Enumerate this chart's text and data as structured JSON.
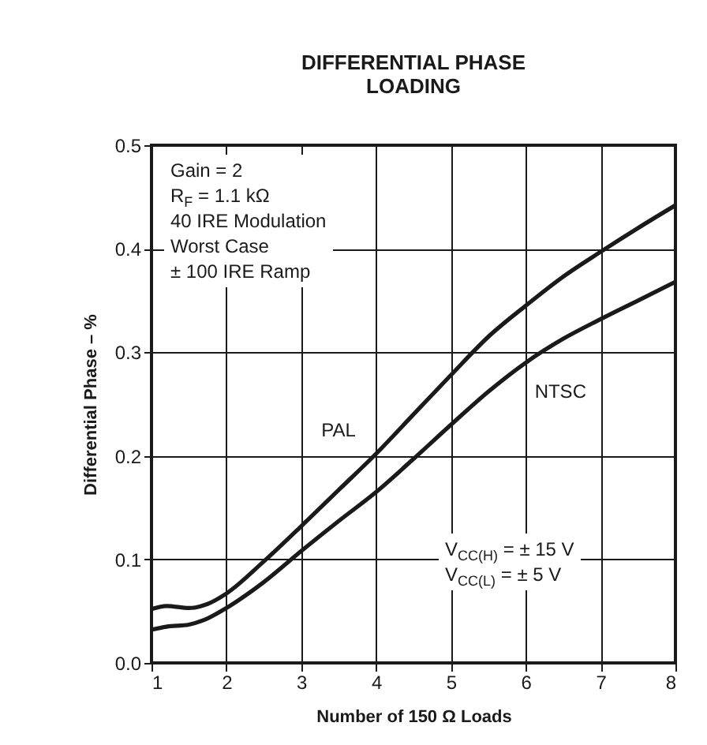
{
  "chart_data": {
    "type": "line",
    "title": "DIFFERENTIAL PHASE\nLOADING",
    "xlabel": "Number of 150 Ω Loads",
    "ylabel": "Differential Phase – %",
    "x": [
      1,
      1.2,
      1.5,
      1.75,
      2,
      2.5,
      3,
      3.5,
      4,
      4.5,
      5,
      5.5,
      6,
      6.5,
      7,
      7.5,
      8
    ],
    "series": [
      {
        "name": "PAL",
        "color": "#1a1a1a",
        "values": [
          0.052,
          0.055,
          0.053,
          0.057,
          0.067,
          0.098,
          0.132,
          0.167,
          0.202,
          0.24,
          0.278,
          0.315,
          0.345,
          0.373,
          0.397,
          0.42,
          0.442
        ]
      },
      {
        "name": "NTSC",
        "color": "#1a1a1a",
        "values": [
          0.032,
          0.035,
          0.037,
          0.043,
          0.053,
          0.078,
          0.108,
          0.137,
          0.165,
          0.197,
          0.23,
          0.262,
          0.29,
          0.313,
          0.332,
          0.35,
          0.368
        ]
      }
    ],
    "xlim": [
      1,
      8
    ],
    "xticks": [
      1,
      2,
      3,
      4,
      5,
      6,
      7,
      8
    ],
    "ylim": [
      0,
      0.5
    ],
    "yticks": [
      {
        "value": 0,
        "label": "0.0"
      },
      {
        "value": 0.1,
        "label": "0.1"
      },
      {
        "value": 0.2,
        "label": "0.2"
      },
      {
        "value": 0.3,
        "label": "0.3"
      },
      {
        "value": 0.4,
        "label": "0.4"
      },
      {
        "value": 0.5,
        "label": "0.5"
      }
    ],
    "grid": true,
    "marker": "none",
    "line_style": "solid",
    "annotations": [
      "Gain = 2\nR$_{F}$ = 1.1 kΩ\n40 IRE Modulation\nWorst Case\n± 100 IRE Ramp",
      "V$_{CC(H)}$ = ± 15 V\nV$_{CC(L)}$ = ± 5 V"
    ]
  }
}
